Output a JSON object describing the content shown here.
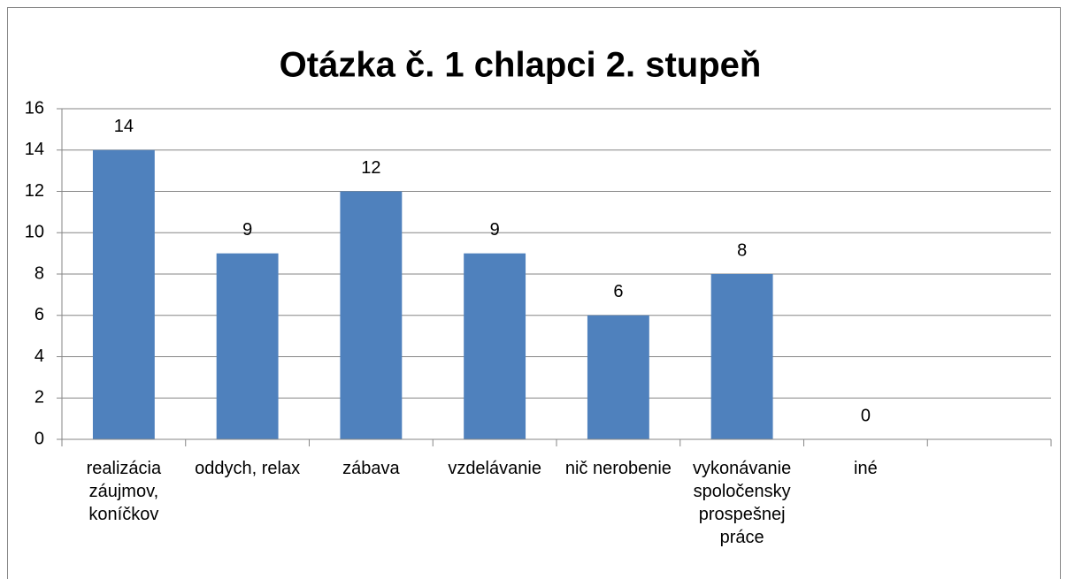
{
  "chart_data": {
    "type": "bar",
    "title": "Otázka č. 1 chlapci 2. stupeň",
    "categories": [
      "realizácia záujmov, koníčkov",
      "oddych, relax",
      "zábava",
      "vzdelávanie",
      "nič nerobenie",
      "vykonávanie spoločensky prospešnej práce",
      "iné",
      null
    ],
    "values": [
      14,
      9,
      12,
      9,
      6,
      8,
      0,
      null
    ],
    "color": "#4f81bd",
    "ylim": [
      0,
      16
    ],
    "yticks": [
      0,
      2,
      4,
      6,
      8,
      10,
      12,
      14,
      16
    ],
    "grid": true
  }
}
